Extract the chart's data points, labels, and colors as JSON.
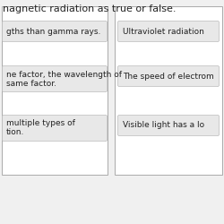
{
  "title": "nagnetic radiation as true or false.",
  "bg_color": "#f0f0f0",
  "left_box_color": "#ffffff",
  "right_box_color": "#ffffff",
  "left_items": [
    "gths than gamma rays.",
    "ne factor, the wavelength of\nsame factor.",
    "multiple types of\ntion."
  ],
  "right_items": [
    "Ultraviolet radiation",
    "The speed of electrom",
    "Visible light has a lo"
  ],
  "item_bg": "#e8e8e8",
  "item_border": "#bbbbbb",
  "outer_border": "#aaaaaa",
  "text_color": "#222222",
  "font_size": 6.5,
  "title_font_size": 8
}
